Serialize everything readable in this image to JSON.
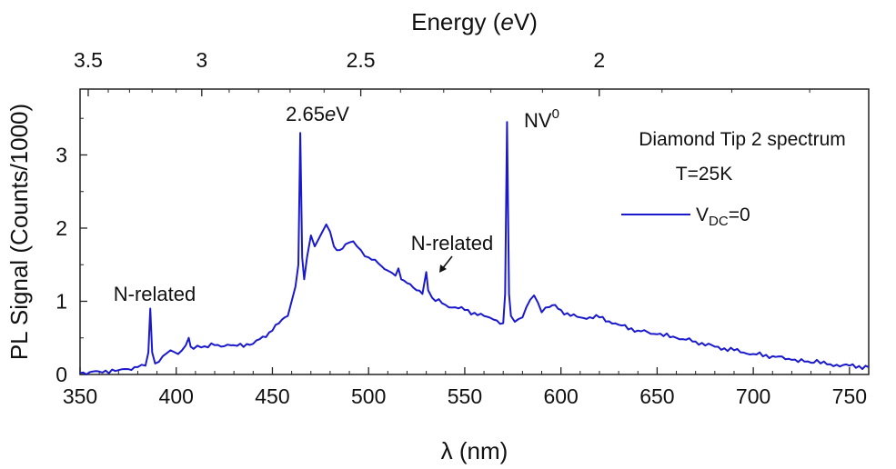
{
  "chart_data": {
    "type": "line",
    "xlabel": "λ (nm)",
    "top_xlabel": "Energy (eV)",
    "top_xlabel_parts": {
      "pre": "Energy (",
      "italic": "e",
      "post": "V)"
    },
    "ylabel": "PL Signal (Counts/1000)",
    "xlim": [
      350,
      760
    ],
    "ylim": [
      0,
      3.9
    ],
    "x_ticks": [
      "350",
      "400",
      "450",
      "500",
      "550",
      "600",
      "650",
      "700",
      "750"
    ],
    "y_ticks": [
      "0",
      "1",
      "2",
      "3"
    ],
    "top_ticks": [
      {
        "label": "3.5",
        "energy_ev": 3.5
      },
      {
        "label": "3",
        "energy_ev": 3.0
      },
      {
        "label": "2.5",
        "energy_ev": 2.5
      },
      {
        "label": "2",
        "energy_ev": 2.0
      }
    ],
    "grid": false,
    "legend_position": "top-right",
    "legend": {
      "title_line1": "Diamond Tip 2 spectrum",
      "title_line2": "T=25K",
      "series_name_main": "V",
      "series_name_sub": "DC",
      "series_name_tail": "=0"
    },
    "series": [
      {
        "name": "V_DC=0",
        "color": "#1a1acc",
        "x": [
          350,
          360,
          370,
          380,
          384,
          385.5,
          386.5,
          387.5,
          389,
          393,
          397,
          401,
          405,
          406.5,
          407.5,
          409,
          413,
          420,
          430,
          440,
          450,
          455,
          458,
          460,
          462,
          463.5,
          464.5,
          465.5,
          466.5,
          468,
          470,
          472,
          474,
          476,
          478,
          480,
          482,
          485,
          488,
          492,
          496,
          500,
          505,
          510,
          514,
          515.5,
          517,
          520,
          525,
          528,
          530,
          531,
          533,
          540,
          550,
          560,
          565,
          570,
          571,
          572,
          573,
          574,
          576,
          580,
          584,
          586,
          590,
          594,
          597,
          600,
          605,
          610,
          620,
          630,
          640,
          650,
          660,
          670,
          680,
          690,
          700,
          710,
          720,
          730,
          733,
          735,
          740,
          750,
          760
        ],
        "y": [
          0.02,
          0.04,
          0.06,
          0.1,
          0.12,
          0.3,
          0.9,
          0.3,
          0.15,
          0.25,
          0.33,
          0.28,
          0.4,
          0.5,
          0.38,
          0.35,
          0.37,
          0.4,
          0.4,
          0.42,
          0.6,
          0.75,
          0.8,
          1.0,
          1.2,
          1.5,
          3.3,
          1.6,
          1.3,
          1.6,
          1.9,
          1.75,
          1.85,
          1.95,
          2.05,
          1.95,
          1.75,
          1.7,
          1.78,
          1.82,
          1.7,
          1.6,
          1.52,
          1.42,
          1.35,
          1.45,
          1.3,
          1.25,
          1.15,
          1.1,
          1.4,
          1.15,
          1.05,
          0.95,
          0.88,
          0.8,
          0.75,
          0.7,
          1.1,
          3.45,
          1.1,
          0.8,
          0.72,
          0.78,
          1.02,
          1.08,
          0.85,
          0.92,
          0.95,
          0.88,
          0.8,
          0.78,
          0.78,
          0.68,
          0.6,
          0.55,
          0.5,
          0.45,
          0.38,
          0.33,
          0.28,
          0.25,
          0.2,
          0.16,
          0.2,
          0.15,
          0.14,
          0.12,
          0.1
        ]
      }
    ],
    "annotations": [
      {
        "text": "N-related",
        "x": 387,
        "y": 0.9
      },
      {
        "text": "2.65",
        "italic_suffix": "e",
        "suffix": "V",
        "x": 465,
        "y": 3.3
      },
      {
        "text": "N-related",
        "x": 531,
        "y": 1.4,
        "arrow": true
      },
      {
        "text": "NV",
        "superscript": "0",
        "x": 572.5,
        "y": 3.45
      }
    ]
  }
}
